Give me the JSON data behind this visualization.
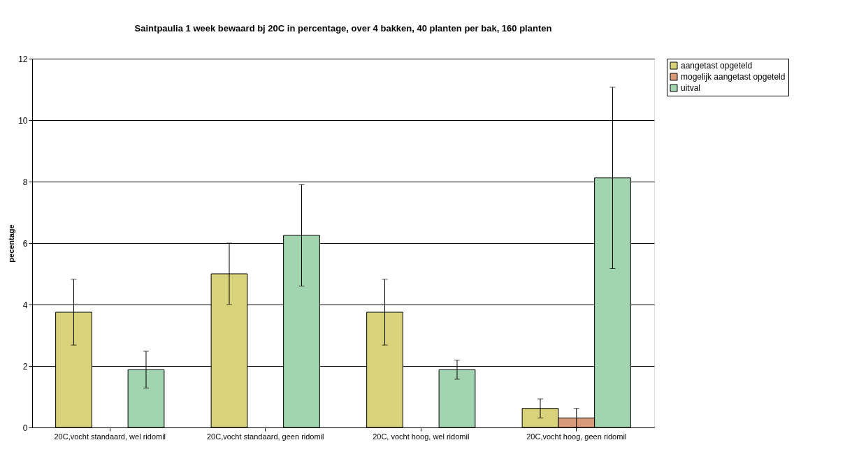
{
  "chart_data": {
    "type": "bar",
    "title": "Saintpaulia 1 week bewaard bj 20C in percentage,  over 4 bakken, 40 planten per bak, 160 planten",
    "ylabel": "pecentage",
    "categories": [
      "20C,vocht standaard, wel ridomil",
      "20C,vocht standaard, geen ridomil",
      "20C, vocht hoog, wel ridomil",
      "20C,vocht hoog, geen ridomil"
    ],
    "series": [
      {
        "name": "aangetast opgeteld",
        "color": "#d8d27a",
        "values": [
          3.75,
          5.0,
          3.75,
          0.62
        ],
        "errors": [
          1.07,
          1.0,
          1.07,
          0.31
        ]
      },
      {
        "name": "mogelijk aangetast opgeteld",
        "color": "#d99a7a",
        "values": [
          0,
          0,
          0,
          0.31
        ],
        "errors": [
          null,
          null,
          null,
          0.31
        ]
      },
      {
        "name": "uitval",
        "color": "#a3d4b0",
        "values": [
          1.88,
          6.25,
          1.88,
          8.12
        ],
        "errors": [
          0.6,
          1.65,
          0.31,
          2.95
        ]
      }
    ],
    "ylim": [
      0,
      12
    ],
    "yticks": [
      0,
      2,
      4,
      6,
      8,
      10,
      12
    ],
    "grid": "y",
    "legend": "right"
  }
}
